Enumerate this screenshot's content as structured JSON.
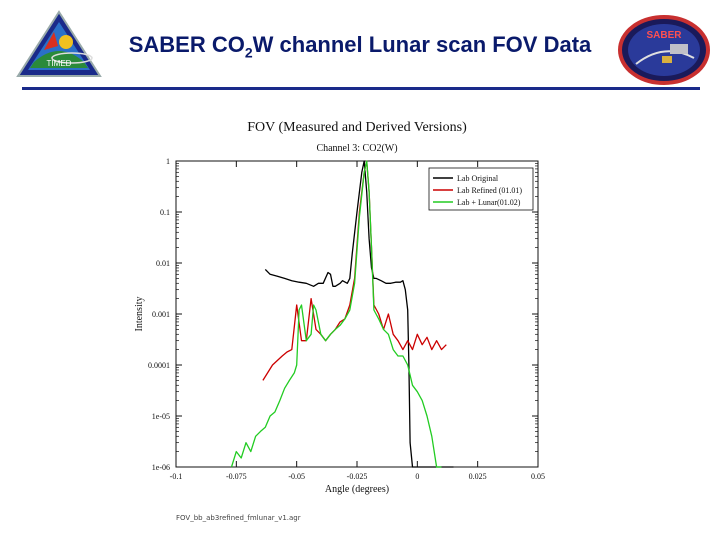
{
  "slide": {
    "title_pre": "SABER CO",
    "title_sub": "2",
    "title_post": "W channel Lunar scan FOV Data",
    "footer": "FOV_bb_ab3refined_fmlunar_v1.agr",
    "left_logo_text": "TIMED",
    "right_logo_text": "SABER"
  },
  "colors": {
    "title": "#0a1a6b",
    "rule": "#1a2a8a",
    "lab_original": "#000000",
    "lab_refined": "#cc0000",
    "lab_lunar": "#22cc22"
  },
  "chart_data": {
    "type": "line",
    "title": "FOV (Measured and Derived Versions)",
    "subtitle": "Channel 3: CO2(W)",
    "xlabel": "Angle (degrees)",
    "ylabel": "Intensity",
    "xlim": [
      -0.1,
      0.05
    ],
    "ylim": [
      1e-06,
      1
    ],
    "yscale": "log",
    "xticks": [
      -0.1,
      -0.075,
      -0.05,
      -0.025,
      0,
      0.025,
      0.05
    ],
    "xtick_labels": [
      "-0.1",
      "-0.075",
      "-0.05",
      "-0.025",
      "0",
      "0.025",
      "0.05"
    ],
    "yticks": [
      1,
      0.1,
      0.01,
      0.001,
      0.0001,
      1e-05,
      1e-06
    ],
    "ytick_labels": [
      "1",
      "0.1",
      "0.01",
      "0.001",
      "0.0001",
      "1e-05",
      "1e-06"
    ],
    "legend_position": "top-right",
    "grid": false,
    "series": [
      {
        "name": "Lab Original",
        "color": "#000000",
        "x": [
          -0.063,
          -0.061,
          -0.058,
          -0.055,
          -0.052,
          -0.049,
          -0.046,
          -0.043,
          -0.041,
          -0.039,
          -0.037,
          -0.036,
          -0.035,
          -0.034,
          -0.032,
          -0.031,
          -0.029,
          -0.028,
          -0.027,
          -0.025,
          -0.023,
          -0.022,
          -0.021,
          -0.02,
          -0.019,
          -0.018,
          -0.017,
          -0.015,
          -0.013,
          -0.011,
          -0.009,
          -0.007,
          -0.006,
          -0.005,
          -0.004,
          -0.0035,
          -0.003,
          -0.002,
          0.0,
          0.005,
          0.01,
          0.015
        ],
        "y": [
          0.0075,
          0.006,
          0.0055,
          0.005,
          0.0045,
          0.0042,
          0.004,
          0.0035,
          0.004,
          0.004,
          0.0065,
          0.006,
          0.0035,
          0.0035,
          0.004,
          0.0045,
          0.004,
          0.005,
          0.015,
          0.1,
          0.6,
          1.0,
          0.25,
          0.03,
          0.008,
          0.005,
          0.005,
          0.0045,
          0.004,
          0.004,
          0.0042,
          0.0042,
          0.0045,
          0.003,
          0.0012,
          0.0001,
          3e-06,
          1e-06,
          1e-06,
          1e-06,
          1e-06,
          1e-06
        ]
      },
      {
        "name": "Lab Refined (01.01)",
        "color": "#cc0000",
        "x": [
          -0.064,
          -0.06,
          -0.056,
          -0.054,
          -0.052,
          -0.05,
          -0.048,
          -0.046,
          -0.044,
          -0.042,
          -0.04,
          -0.038,
          -0.036,
          -0.034,
          -0.032,
          -0.03,
          -0.028,
          -0.026,
          -0.024,
          -0.022,
          -0.021,
          -0.02,
          -0.019,
          -0.018,
          -0.016,
          -0.014,
          -0.012,
          -0.01,
          -0.008,
          -0.006,
          -0.004,
          -0.002,
          0.0,
          0.002,
          0.004,
          0.006,
          0.008,
          0.01,
          0.012
        ],
        "y": [
          5e-05,
          0.0001,
          0.00015,
          0.00018,
          0.0002,
          0.0015,
          0.0003,
          0.0003,
          0.002,
          0.0005,
          0.0004,
          0.0003,
          0.0004,
          0.0005,
          0.0007,
          0.0008,
          0.0015,
          0.005,
          0.1,
          0.6,
          1.0,
          0.25,
          0.02,
          0.0015,
          0.001,
          0.0005,
          0.001,
          0.0004,
          0.0003,
          0.0002,
          0.0003,
          0.0002,
          0.0004,
          0.00025,
          0.00035,
          0.0002,
          0.0003,
          0.0002,
          0.00025
        ]
      },
      {
        "name": "Lab + Lunar(01.02)",
        "color": "#22cc22",
        "x": [
          -0.077,
          -0.075,
          -0.073,
          -0.071,
          -0.069,
          -0.067,
          -0.065,
          -0.063,
          -0.061,
          -0.059,
          -0.057,
          -0.055,
          -0.053,
          -0.051,
          -0.05,
          -0.049,
          -0.048,
          -0.046,
          -0.044,
          -0.043,
          -0.042,
          -0.04,
          -0.038,
          -0.036,
          -0.034,
          -0.032,
          -0.03,
          -0.028,
          -0.026,
          -0.024,
          -0.022,
          -0.021,
          -0.02,
          -0.019,
          -0.018,
          -0.016,
          -0.014,
          -0.012,
          -0.01,
          -0.008,
          -0.006,
          -0.004,
          -0.002,
          0.0,
          0.002,
          0.004,
          0.006,
          0.008,
          0.01
        ],
        "y": [
          1e-06,
          2e-06,
          1.5e-06,
          3e-06,
          2e-06,
          4e-06,
          5e-06,
          6e-06,
          1e-05,
          1.2e-05,
          2e-05,
          3.5e-05,
          5e-05,
          7e-05,
          0.0001,
          0.0012,
          0.0015,
          0.0003,
          0.0004,
          0.0015,
          0.0012,
          0.0004,
          0.0003,
          0.0004,
          0.0005,
          0.0006,
          0.0008,
          0.0012,
          0.004,
          0.08,
          0.6,
          1.0,
          0.25,
          0.02,
          0.0012,
          0.0008,
          0.0005,
          0.0004,
          0.0002,
          0.00015,
          0.00015,
          0.0001,
          4e-05,
          3e-05,
          2e-05,
          1e-05,
          4e-06,
          1e-06,
          1e-06
        ]
      }
    ]
  }
}
